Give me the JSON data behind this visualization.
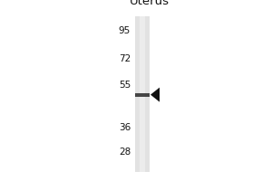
{
  "title": "Uterus",
  "mw_markers": [
    95,
    72,
    55,
    36,
    28
  ],
  "band_mw": 50,
  "bg_color": "#ffffff",
  "lane_bg_color": "#e8e8e8",
  "lane_strip_color": "#d0d0d0",
  "arrow_color": "#111111",
  "band_color": "#2a2a2a",
  "text_color": "#111111",
  "marker_font_size": 7.5,
  "title_font_size": 9.5,
  "fig_bg": "#ffffff",
  "mw_log_min": 1.362,
  "mw_log_max": 2.041
}
